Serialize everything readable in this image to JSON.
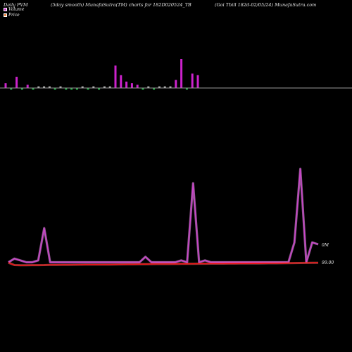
{
  "header": {
    "left": "Daily PVM",
    "middle": "(5day smooth) MunafaSutra(TM) charts for 182D020524_TB",
    "right": "(Goi  Tbill 182d-02/05/24) MunafaSutra.com"
  },
  "legend": [
    {
      "label": "Volume",
      "color": "#cc33cc"
    },
    {
      "label": "Price",
      "color": "#ee8844"
    }
  ],
  "colors": {
    "volume_bar": "#cc22cc",
    "volume_small": "#bbbbbb",
    "volume_green": "#22aa44",
    "pvm_line": "#cc44cc",
    "price_line": "#ee1111",
    "baseline": "#999999"
  },
  "chart_data": [
    {
      "type": "bar",
      "name": "volume",
      "values": [
        3,
        1,
        7,
        3,
        2,
        1,
        1,
        1,
        1,
        0,
        1,
        1,
        1,
        1,
        1,
        1,
        1,
        1,
        1,
        1,
        14,
        8,
        4,
        3,
        2,
        1,
        1,
        1,
        1,
        1,
        1,
        5,
        18,
        10,
        9,
        8
      ],
      "down": [
        false,
        true,
        false,
        true,
        false,
        true,
        false,
        false,
        false,
        true,
        false,
        true,
        true,
        true,
        false,
        true,
        false,
        true,
        false,
        false,
        false,
        false,
        false,
        false,
        false,
        true,
        false,
        true,
        false,
        false,
        false,
        false,
        false,
        true,
        false,
        false
      ]
    },
    {
      "type": "line",
      "name": "pvm",
      "values": [
        1,
        3,
        2,
        1,
        1,
        2,
        20,
        1,
        1,
        1,
        1,
        1,
        1,
        1,
        1,
        1,
        1,
        1,
        1,
        1,
        1,
        1,
        1,
        4,
        1,
        1,
        1,
        1,
        1,
        2,
        1,
        45,
        1,
        2,
        1,
        1,
        1,
        1,
        1,
        1,
        1,
        1,
        1,
        1,
        1,
        1,
        1,
        1,
        12,
        53,
        1,
        12,
        11
      ],
      "label": "0M"
    },
    {
      "type": "line",
      "name": "price",
      "values": [
        0.8,
        -2.5,
        -2.8,
        -2.7,
        -2.6,
        -2.6,
        -2.5,
        -2.2,
        -2.2,
        -2.1,
        -2.1,
        -2.0,
        -1.9,
        -1.8,
        -1.8,
        -1.8,
        -1.7,
        -1.7,
        -1.6,
        -1.5,
        -1.4,
        -1.4,
        -1.2,
        -1.2,
        -1.1,
        -1.0,
        -1.0,
        -1.0,
        -0.9,
        -0.8,
        -0.8,
        -0.7,
        -0.6,
        -0.6,
        -0.5,
        -0.5,
        -0.5,
        -0.4,
        -0.4,
        -0.3,
        -0.3,
        -0.2,
        -0.2,
        -0.1,
        0.0,
        0.0,
        0.1,
        0.3,
        0.4,
        0.5,
        0.6,
        0.7,
        0.8
      ],
      "label": "99.00"
    }
  ]
}
